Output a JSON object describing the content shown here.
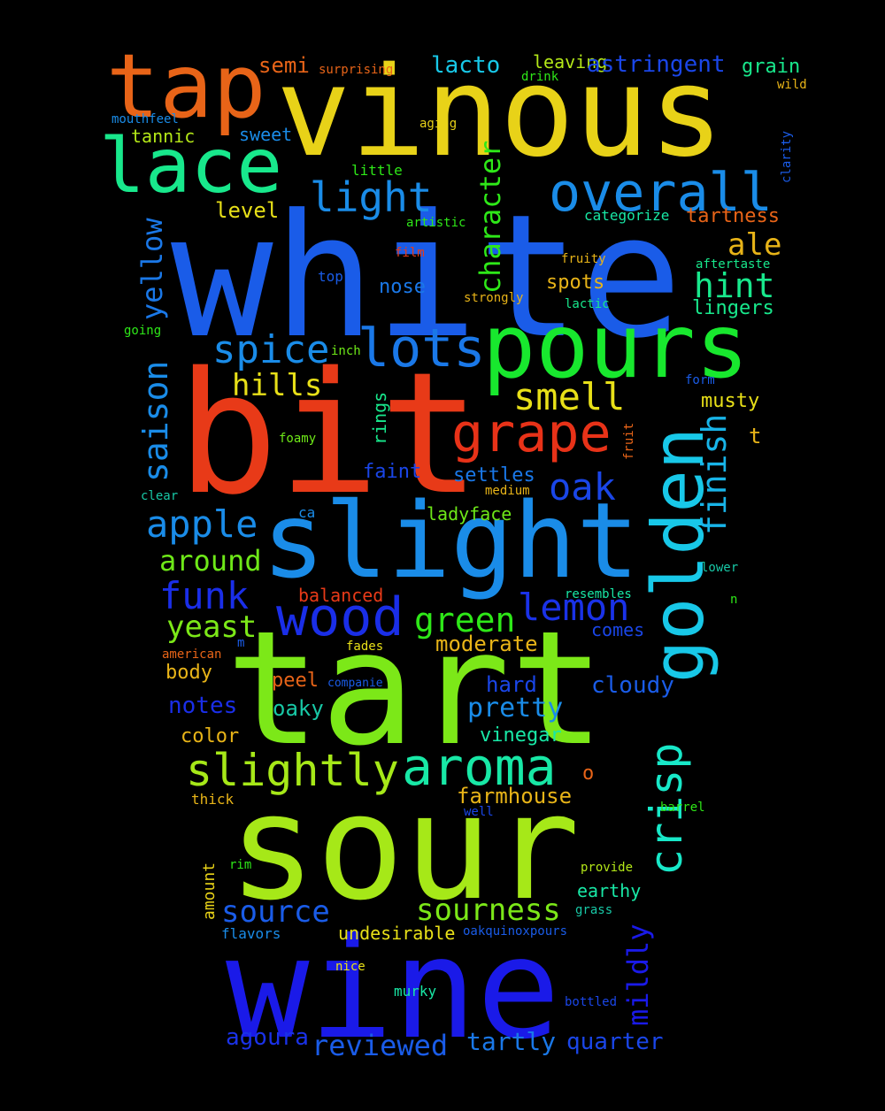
{
  "cloud": {
    "words": [
      {
        "text": "white",
        "color": "#1a5ce8",
        "vertical": false
      },
      {
        "text": "bit",
        "color": "#e83a18",
        "vertical": false
      },
      {
        "text": "tart",
        "color": "#7ce818",
        "vertical": false
      },
      {
        "text": "sour",
        "color": "#a6e818",
        "vertical": false
      },
      {
        "text": "wine",
        "color": "#1a1ae8",
        "vertical": false
      },
      {
        "text": "vinous",
        "color": "#e8d218",
        "vertical": false
      },
      {
        "text": "slight",
        "color": "#1a8ce8",
        "vertical": false
      },
      {
        "text": "pours",
        "color": "#18e82e",
        "vertical": false
      },
      {
        "text": "tap",
        "color": "#e86418",
        "vertical": false
      },
      {
        "text": "lace",
        "color": "#18e88c",
        "vertical": false
      },
      {
        "text": "golden",
        "color": "#18c8e8",
        "vertical": true
      },
      {
        "text": "overall",
        "color": "#1a8ce8",
        "vertical": false
      },
      {
        "text": "lots",
        "color": "#1a78e8",
        "vertical": false
      },
      {
        "text": "grape",
        "color": "#e83218",
        "vertical": false
      },
      {
        "text": "wood",
        "color": "#1a2ee8",
        "vertical": false
      },
      {
        "text": "aroma",
        "color": "#18e8a6",
        "vertical": false
      },
      {
        "text": "slightly",
        "color": "#a6e818",
        "vertical": false
      },
      {
        "text": "crisp",
        "color": "#18e8c8",
        "vertical": true
      },
      {
        "text": "light",
        "color": "#1a8ce8",
        "vertical": false
      },
      {
        "text": "spice",
        "color": "#1a8ce8",
        "vertical": false
      },
      {
        "text": "smell",
        "color": "#e8e018",
        "vertical": false
      },
      {
        "text": "apple",
        "color": "#1a8ce8",
        "vertical": false
      },
      {
        "text": "funk",
        "color": "#1a2ee8",
        "vertical": false
      },
      {
        "text": "lemon",
        "color": "#1a32e8",
        "vertical": false
      },
      {
        "text": "oak",
        "color": "#1a46e8",
        "vertical": false
      },
      {
        "text": "green",
        "color": "#2ee818",
        "vertical": false
      },
      {
        "text": "saison",
        "color": "#1a8ce8",
        "vertical": true
      },
      {
        "text": "finish",
        "color": "#18b4e8",
        "vertical": true
      },
      {
        "text": "hint",
        "color": "#18e88c",
        "vertical": false
      },
      {
        "text": "hills",
        "color": "#e8e018",
        "vertical": false
      },
      {
        "text": "character",
        "color": "#2ee818",
        "vertical": true
      },
      {
        "text": "yellow",
        "color": "#1a78e8",
        "vertical": true
      },
      {
        "text": "ale",
        "color": "#e8b418",
        "vertical": false
      },
      {
        "text": "around",
        "color": "#6ee818",
        "vertical": false
      },
      {
        "text": "yeast",
        "color": "#7ce818",
        "vertical": false
      },
      {
        "text": "source",
        "color": "#1a5ce8",
        "vertical": false
      },
      {
        "text": "sourness",
        "color": "#7ce818",
        "vertical": false
      },
      {
        "text": "mildly",
        "color": "#1a1ae8",
        "vertical": true
      },
      {
        "text": "pretty",
        "color": "#1a8ce8",
        "vertical": false
      },
      {
        "text": "reviewed",
        "color": "#1a5ce8",
        "vertical": false
      },
      {
        "text": "tartly",
        "color": "#1a78e8",
        "vertical": false
      },
      {
        "text": "quarter",
        "color": "#1a46e8",
        "vertical": false
      },
      {
        "text": "agoura",
        "color": "#1a32e8",
        "vertical": false
      },
      {
        "text": "semi",
        "color": "#e86418",
        "vertical": false
      },
      {
        "text": "lacto",
        "color": "#18c8e8",
        "vertical": false
      },
      {
        "text": "leaving",
        "color": "#b4e818",
        "vertical": false
      },
      {
        "text": "astringent",
        "color": "#1a46e8",
        "vertical": false
      },
      {
        "text": "grain",
        "color": "#18e88c",
        "vertical": false
      },
      {
        "text": "notes",
        "color": "#1a2ee8",
        "vertical": false
      },
      {
        "text": "cloudy",
        "color": "#1a5ce8",
        "vertical": false
      },
      {
        "text": "hard",
        "color": "#1a46e8",
        "vertical": false
      },
      {
        "text": "moderate",
        "color": "#e8b418",
        "vertical": false
      },
      {
        "text": "farmhouse",
        "color": "#e8b418",
        "vertical": false
      },
      {
        "text": "vinegar",
        "color": "#18e8a6",
        "vertical": false
      },
      {
        "text": "oaky",
        "color": "#18c8a6",
        "vertical": false
      },
      {
        "text": "peel",
        "color": "#e86418",
        "vertical": false
      },
      {
        "text": "body",
        "color": "#e8b418",
        "vertical": false
      },
      {
        "text": "color",
        "color": "#e8b418",
        "vertical": false
      },
      {
        "text": "balanced",
        "color": "#e83a18",
        "vertical": false
      },
      {
        "text": "comes",
        "color": "#1a46e8",
        "vertical": false
      },
      {
        "text": "nose",
        "color": "#1a78e8",
        "vertical": false
      },
      {
        "text": "spots",
        "color": "#e8b418",
        "vertical": false
      },
      {
        "text": "lingers",
        "color": "#18e88c",
        "vertical": false
      },
      {
        "text": "tartness",
        "color": "#e86418",
        "vertical": false
      },
      {
        "text": "musty",
        "color": "#e8e018",
        "vertical": false
      },
      {
        "text": "faint",
        "color": "#1a46e8",
        "vertical": false
      },
      {
        "text": "settles",
        "color": "#1a78e8",
        "vertical": false
      },
      {
        "text": "ladyface",
        "color": "#6ee818",
        "vertical": false
      },
      {
        "text": "level",
        "color": "#e8e018",
        "vertical": false
      },
      {
        "text": "sweet",
        "color": "#1a8ce8",
        "vertical": false
      },
      {
        "text": "tannic",
        "color": "#b4e818",
        "vertical": false
      },
      {
        "text": "rings",
        "color": "#18e88c",
        "vertical": true
      },
      {
        "text": "undesirable",
        "color": "#e8e018",
        "vertical": false
      },
      {
        "text": "earthy",
        "color": "#18e8a6",
        "vertical": false
      },
      {
        "text": "t",
        "color": "#e8b418",
        "vertical": false
      },
      {
        "text": "o",
        "color": "#e86418",
        "vertical": false
      },
      {
        "text": "amount",
        "color": "#e8d218",
        "vertical": true
      },
      {
        "text": "flavors",
        "color": "#1a8ce8",
        "vertical": false
      },
      {
        "text": "murky",
        "color": "#18e8a6",
        "vertical": false
      },
      {
        "text": "thick",
        "color": "#e8b418",
        "vertical": false
      },
      {
        "text": "surprising",
        "color": "#e86418",
        "vertical": false
      },
      {
        "text": "drink",
        "color": "#2ee818",
        "vertical": false
      },
      {
        "text": "wild",
        "color": "#e8b418",
        "vertical": false
      },
      {
        "text": "mouthfeel",
        "color": "#1a8ce8",
        "vertical": false
      },
      {
        "text": "aging",
        "color": "#e8d218",
        "vertical": false
      },
      {
        "text": "clarity",
        "color": "#1a5ce8",
        "vertical": true
      },
      {
        "text": "little",
        "color": "#2ee818",
        "vertical": false
      },
      {
        "text": "artistic",
        "color": "#2ee818",
        "vertical": false
      },
      {
        "text": "categorize",
        "color": "#18e8a6",
        "vertical": false
      },
      {
        "text": "film",
        "color": "#e83a18",
        "vertical": false
      },
      {
        "text": "fruity",
        "color": "#e8b418",
        "vertical": false
      },
      {
        "text": "aftertaste",
        "color": "#18e88c",
        "vertical": false
      },
      {
        "text": "top",
        "color": "#1a5ce8",
        "vertical": false
      },
      {
        "text": "strongly",
        "color": "#e8b418",
        "vertical": false
      },
      {
        "text": "lactic",
        "color": "#18e88c",
        "vertical": false
      },
      {
        "text": "going",
        "color": "#2ee818",
        "vertical": false
      },
      {
        "text": "inch",
        "color": "#6ee818",
        "vertical": false
      },
      {
        "text": "form",
        "color": "#1a5ce8",
        "vertical": false
      },
      {
        "text": "foamy",
        "color": "#6ee818",
        "vertical": false
      },
      {
        "text": "fruit",
        "color": "#e86418",
        "vertical": true
      },
      {
        "text": "clear",
        "color": "#18c8a6",
        "vertical": false
      },
      {
        "text": "medium",
        "color": "#e8b418",
        "vertical": false
      },
      {
        "text": "ca",
        "color": "#1a8ce8",
        "vertical": false
      },
      {
        "text": "lower",
        "color": "#18c8a6",
        "vertical": false
      },
      {
        "text": "n",
        "color": "#2ee818",
        "vertical": false
      },
      {
        "text": "resembles",
        "color": "#18e8a6",
        "vertical": false
      },
      {
        "text": "american",
        "color": "#e86418",
        "vertical": false
      },
      {
        "text": "m",
        "color": "#1a5ce8",
        "vertical": false
      },
      {
        "text": "fades",
        "color": "#e8e018",
        "vertical": false
      },
      {
        "text": "companie",
        "color": "#1a5ce8",
        "vertical": false
      },
      {
        "text": "well",
        "color": "#1a46e8",
        "vertical": false
      },
      {
        "text": "barrel",
        "color": "#2ee818",
        "vertical": false
      },
      {
        "text": "rim",
        "color": "#2ee818",
        "vertical": false
      },
      {
        "text": "provide",
        "color": "#b4e818",
        "vertical": false
      },
      {
        "text": "grass",
        "color": "#18c8a6",
        "vertical": false
      },
      {
        "text": "oakquinoxpours",
        "color": "#1a5ce8",
        "vertical": false
      },
      {
        "text": "nice",
        "color": "#e8e018",
        "vertical": false
      },
      {
        "text": "bottled",
        "color": "#1a46e8",
        "vertical": false
      }
    ]
  }
}
